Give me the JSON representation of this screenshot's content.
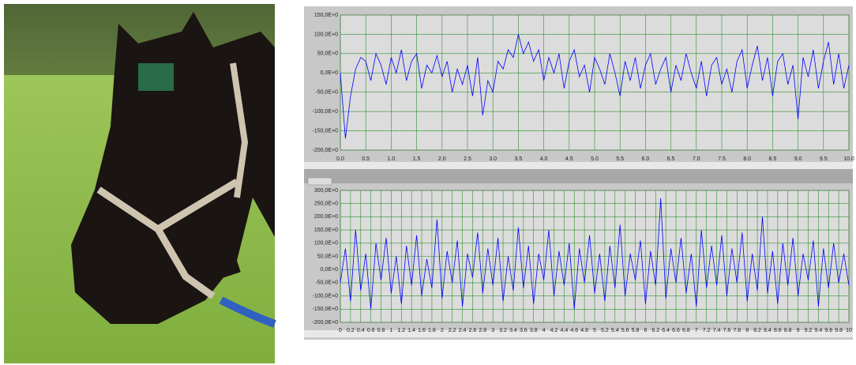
{
  "chart_data": [
    {
      "type": "line",
      "color": "#0000ff",
      "grid": true,
      "x": [
        0,
        0.1,
        0.2,
        0.3,
        0.4,
        0.5,
        0.6,
        0.7,
        0.8,
        0.9,
        1,
        1.1,
        1.2,
        1.3,
        1.4,
        1.5,
        1.6,
        1.7,
        1.8,
        1.9,
        2,
        2.1,
        2.2,
        2.3,
        2.4,
        2.5,
        2.6,
        2.7,
        2.8,
        2.9,
        3,
        3.1,
        3.2,
        3.3,
        3.4,
        3.5,
        3.6,
        3.7,
        3.8,
        3.9,
        4,
        4.1,
        4.2,
        4.3,
        4.4,
        4.5,
        4.6,
        4.7,
        4.8,
        4.9,
        5,
        5.1,
        5.2,
        5.3,
        5.4,
        5.5,
        5.6,
        5.7,
        5.8,
        5.9,
        6,
        6.1,
        6.2,
        6.3,
        6.4,
        6.5,
        6.6,
        6.7,
        6.8,
        6.9,
        7,
        7.1,
        7.2,
        7.3,
        7.4,
        7.5,
        7.6,
        7.7,
        7.8,
        7.9,
        8,
        8.1,
        8.2,
        8.3,
        8.4,
        8.5,
        8.6,
        8.7,
        8.8,
        8.9,
        9,
        9.1,
        9.2,
        9.3,
        9.4,
        9.5,
        9.6,
        9.7,
        9.8,
        9.9,
        10
      ],
      "values": [
        0,
        -170,
        -60,
        10,
        40,
        30,
        -20,
        50,
        20,
        -30,
        40,
        0,
        60,
        -20,
        30,
        50,
        -40,
        20,
        0,
        45,
        -10,
        30,
        -50,
        10,
        -30,
        20,
        -60,
        40,
        -110,
        -20,
        -50,
        30,
        10,
        60,
        40,
        100,
        50,
        80,
        30,
        60,
        -20,
        40,
        0,
        50,
        -40,
        30,
        60,
        -10,
        20,
        -50,
        40,
        10,
        -30,
        50,
        0,
        -60,
        30,
        -20,
        40,
        -40,
        20,
        50,
        -30,
        10,
        40,
        -50,
        20,
        -20,
        50,
        0,
        -40,
        30,
        -60,
        20,
        40,
        -30,
        10,
        -50,
        30,
        60,
        -40,
        20,
        70,
        -20,
        40,
        -60,
        30,
        50,
        -30,
        20,
        -120,
        40,
        -10,
        60,
        -40,
        30,
        80,
        -30,
        50,
        -40,
        20
      ],
      "xlim": [
        0,
        10
      ],
      "ylim": [
        -200,
        150
      ],
      "xticks": [
        {
          "value": 0,
          "label": "0.0"
        },
        0.5,
        {
          "value": 1,
          "label": "1.0"
        },
        1.5,
        {
          "value": 2,
          "label": "2.0"
        },
        2.5,
        {
          "value": 3,
          "label": "3.0"
        },
        3.5,
        {
          "value": 4,
          "label": "4.0"
        },
        4.5,
        {
          "value": 5,
          "label": "5.0"
        },
        5.5,
        {
          "value": 6,
          "label": "6.0"
        },
        6.5,
        {
          "value": 7,
          "label": "7.0"
        },
        7.5,
        {
          "value": 8,
          "label": "8.0"
        },
        8.5,
        {
          "value": 9,
          "label": "9.0"
        },
        9.5,
        {
          "value": 10,
          "label": "10.0"
        }
      ],
      "yticks": [
        {
          "value": 150,
          "label": "150,0E+0"
        },
        {
          "value": 100,
          "label": "100,0E+0"
        },
        {
          "value": 50,
          "label": "50,0E+0"
        },
        {
          "value": 0,
          "label": "0,0E+0"
        },
        {
          "value": -50,
          "label": "-50,0E+0"
        },
        {
          "value": -100,
          "label": "-100,0E+0"
        },
        {
          "value": -150,
          "label": "-150,0E+0"
        },
        {
          "value": -200,
          "label": "-200,0E+0"
        }
      ]
    },
    {
      "type": "line",
      "color": "#0000ff",
      "grid": true,
      "x": [
        0,
        0.1,
        0.2,
        0.3,
        0.4,
        0.5,
        0.6,
        0.7,
        0.8,
        0.9,
        1,
        1.1,
        1.2,
        1.3,
        1.4,
        1.5,
        1.6,
        1.7,
        1.8,
        1.9,
        2,
        2.1,
        2.2,
        2.3,
        2.4,
        2.5,
        2.6,
        2.7,
        2.8,
        2.9,
        3,
        3.1,
        3.2,
        3.3,
        3.4,
        3.5,
        3.6,
        3.7,
        3.8,
        3.9,
        4,
        4.1,
        4.2,
        4.3,
        4.4,
        4.5,
        4.6,
        4.7,
        4.8,
        4.9,
        5,
        5.1,
        5.2,
        5.3,
        5.4,
        5.5,
        5.6,
        5.7,
        5.8,
        5.9,
        6,
        6.1,
        6.2,
        6.3,
        6.4,
        6.5,
        6.6,
        6.7,
        6.8,
        6.9,
        7,
        7.1,
        7.2,
        7.3,
        7.4,
        7.5,
        7.6,
        7.7,
        7.8,
        7.9,
        8,
        8.1,
        8.2,
        8.3,
        8.4,
        8.5,
        8.6,
        8.7,
        8.8,
        8.9,
        9,
        9.1,
        9.2,
        9.3,
        9.4,
        9.5,
        9.6,
        9.7,
        9.8,
        9.9,
        10
      ],
      "values": [
        -50,
        80,
        -120,
        150,
        -80,
        60,
        -150,
        100,
        -40,
        120,
        -90,
        50,
        -130,
        90,
        -60,
        130,
        -100,
        40,
        -70,
        190,
        -110,
        70,
        -50,
        110,
        -140,
        60,
        -30,
        140,
        -90,
        80,
        -60,
        120,
        -120,
        50,
        -80,
        160,
        -70,
        90,
        -130,
        60,
        -40,
        150,
        -100,
        70,
        -60,
        100,
        -150,
        80,
        -50,
        130,
        -90,
        60,
        -120,
        90,
        -70,
        170,
        -100,
        60,
        -40,
        110,
        -130,
        70,
        -60,
        270,
        -110,
        80,
        -50,
        120,
        -90,
        60,
        -140,
        150,
        -70,
        90,
        -60,
        130,
        -100,
        80,
        -50,
        140,
        -120,
        60,
        -80,
        200,
        -90,
        70,
        -130,
        100,
        -60,
        120,
        -100,
        60,
        -40,
        110,
        -140,
        80,
        -70,
        100,
        -50,
        60,
        -60
      ],
      "xlim": [
        0,
        10
      ],
      "ylim": [
        -200,
        300
      ],
      "xticks": [
        0,
        0.2,
        0.4,
        0.6,
        0.8,
        1,
        1.2,
        1.4,
        1.6,
        1.8,
        2,
        2.2,
        2.4,
        2.6,
        2.8,
        3,
        3.2,
        3.4,
        3.6,
        3.8,
        4,
        4.2,
        4.4,
        4.6,
        4.8,
        5,
        5.2,
        5.4,
        5.6,
        5.8,
        6,
        6.2,
        6.4,
        6.6,
        6.8,
        7,
        7.2,
        7.4,
        7.6,
        7.8,
        8,
        8.2,
        8.4,
        8.6,
        8.8,
        9,
        9.2,
        9.4,
        9.6,
        9.8,
        10
      ],
      "yticks": [
        {
          "value": 300,
          "label": "300,0E+0"
        },
        {
          "value": 250,
          "label": "250,0E+0"
        },
        {
          "value": 200,
          "label": "200,0E+0"
        },
        {
          "value": 150,
          "label": "150,0E+0"
        },
        {
          "value": 100,
          "label": "100,0E+0"
        },
        {
          "value": 50,
          "label": "50,0E+0"
        },
        {
          "value": 0,
          "label": "0,0E+0"
        },
        {
          "value": -50,
          "label": "-50,0E+0"
        },
        {
          "value": -100,
          "label": "-100,0E+0"
        },
        {
          "value": -150,
          "label": "-150,0E+0"
        },
        {
          "value": -200,
          "label": "-200,0E+0"
        }
      ]
    }
  ]
}
